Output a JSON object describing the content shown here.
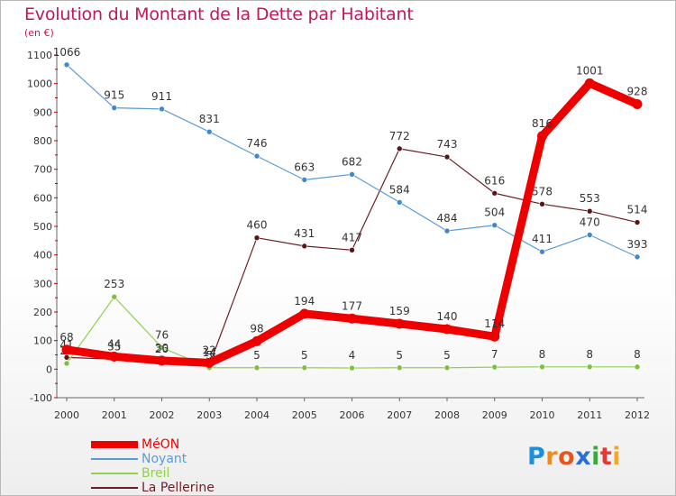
{
  "chart_data": {
    "type": "line",
    "title": "Evolution du Montant de la Dette par Habitant",
    "subtitle": "(en €)",
    "x": [
      "2000",
      "2001",
      "2002",
      "2003",
      "2004",
      "2005",
      "2006",
      "2007",
      "2008",
      "2009",
      "2010",
      "2011",
      "2012"
    ],
    "ylim": [
      -100,
      1100
    ],
    "yticks": [
      -100,
      0,
      100,
      200,
      300,
      400,
      500,
      600,
      700,
      800,
      900,
      1000,
      1100
    ],
    "grid": false,
    "legend_position": "bottom-left",
    "series": [
      {
        "name": "La Pellerine",
        "color": "#6b1f24",
        "marker": "#5a1518",
        "width": 1.2,
        "values": [
          41,
          35,
          26,
          14,
          460,
          431,
          417,
          772,
          743,
          616,
          578,
          553,
          514
        ],
        "labels": [
          "41",
          "35",
          "26",
          "14",
          "460",
          "431",
          "417",
          "772",
          "743",
          "616",
          "578",
          "553",
          "514"
        ]
      },
      {
        "name": "Breil",
        "color": "#92d050",
        "marker": "#7cc040",
        "width": 1.2,
        "values": [
          20,
          253,
          76,
          5,
          5,
          5,
          4,
          5,
          5,
          7,
          8,
          8,
          8
        ],
        "labels": [
          "20",
          "253",
          "76",
          "5",
          "5",
          "5",
          "4",
          "5",
          "5",
          "7",
          "8",
          "8",
          "8"
        ]
      },
      {
        "name": "Noyant",
        "color": "#5b9bd5",
        "marker": "#3f88cc",
        "width": 1.2,
        "values": [
          1066,
          915,
          911,
          831,
          746,
          663,
          682,
          584,
          484,
          504,
          411,
          470,
          393
        ],
        "labels": [
          "1066",
          "915",
          "911",
          "831",
          "746",
          "663",
          "682",
          "584",
          "484",
          "504",
          "411",
          "470",
          "393"
        ]
      },
      {
        "name": "MéON",
        "color": "#ee0000",
        "marker": "#ee0000",
        "width": 9,
        "values": [
          68,
          44,
          30,
          22,
          98,
          194,
          177,
          159,
          140,
          114,
          816,
          1001,
          928
        ],
        "labels": [
          "68",
          "44",
          "30",
          "22",
          "98",
          "194",
          "177",
          "159",
          "140",
          "114",
          "816",
          "1001",
          "928"
        ]
      }
    ]
  },
  "legend": {
    "items": [
      {
        "label": "MéON",
        "color": "#ee0000",
        "thickness": 8
      },
      {
        "label": "Noyant",
        "color": "#5b9bd5",
        "thickness": 2
      },
      {
        "label": "Breil",
        "color": "#92d050",
        "thickness": 2
      },
      {
        "label": "La Pellerine",
        "color": "#6b1f24",
        "thickness": 2
      }
    ]
  },
  "logo": {
    "p": "P",
    "r": "r",
    "o": "o",
    "x": "x",
    "i": "i",
    "t": "t",
    "i2": "i"
  }
}
